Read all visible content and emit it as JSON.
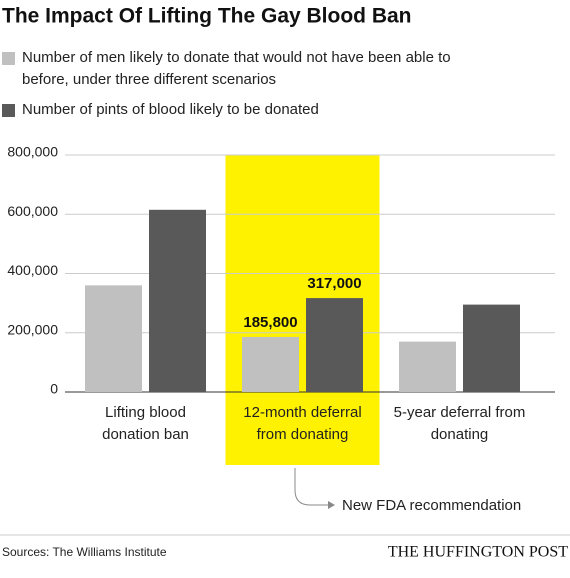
{
  "chart_data": {
    "type": "bar",
    "title": "The Impact Of Lifting The Gay Blood Ban",
    "categories": [
      "Lifting blood donation ban",
      "12-month deferral from donating",
      "5-year deferral from donating"
    ],
    "series": [
      {
        "name": "Number of men likely to donate that would not have been able to before, under three different scenarios",
        "color": "#c0c0c0",
        "values": [
          360000,
          185800,
          170000
        ],
        "value_labels": [
          null,
          "185,800",
          null
        ]
      },
      {
        "name": "Number of pints of blood likely to be donated",
        "color": "#595959",
        "values": [
          615000,
          317000,
          295000
        ],
        "value_labels": [
          null,
          "317,000",
          null
        ]
      }
    ],
    "ylim": [
      0,
      800000
    ],
    "yticks": [
      0,
      {
        "value": 200000,
        "label": "200,000"
      },
      {
        "value": 400000,
        "label": "400,000"
      },
      {
        "value": 600000,
        "label": "600,000"
      },
      {
        "value": 800000,
        "label": "800,000"
      }
    ],
    "grid": true,
    "highlight": {
      "category_index": 1,
      "color": "#fff200"
    },
    "annotation": "New FDA recommendation",
    "source": "Sources: The Williams Institute",
    "publisher": "THE HUFFINGTON POST"
  }
}
